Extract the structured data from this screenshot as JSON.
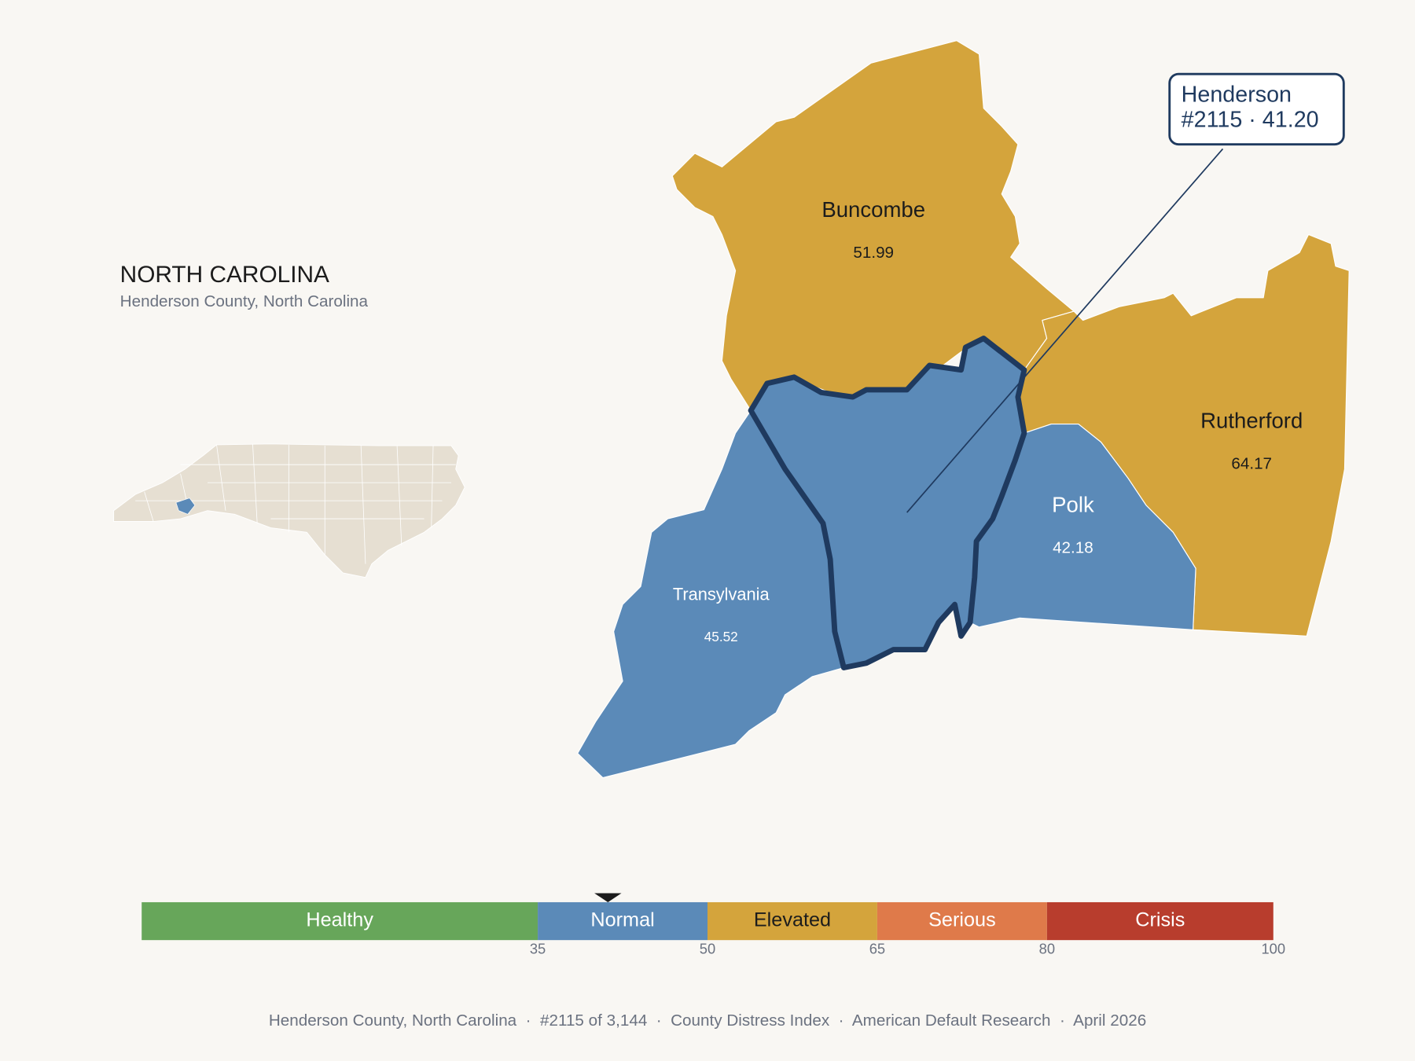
{
  "header": {
    "title": "NORTH CAROLINA",
    "subtitle": "Henderson County, North Carolina"
  },
  "map": {
    "counties": [
      {
        "name": "Buncombe",
        "value": 51.99
      },
      {
        "name": "Rutherford",
        "value": 64.17
      },
      {
        "name": "Polk",
        "value": 42.18
      },
      {
        "name": "Transylvania",
        "value": 45.52
      },
      {
        "name": "Henderson",
        "value": 41.2,
        "value_label": "41.20"
      }
    ]
  },
  "callout": "#2115 · 41.20",
  "scale": {
    "xlim": [
      0,
      100
    ],
    "bands": [
      {
        "label": "Healthy",
        "to": 35,
        "color": "#67a65a"
      },
      {
        "label": "Normal",
        "to": 50,
        "color": "#5b8ab8"
      },
      {
        "label": "Elevated",
        "to": 65,
        "color": "#d4a43c"
      },
      {
        "label": "Serious",
        "to": 80,
        "color": "#df7a4a"
      },
      {
        "label": "Crisis",
        "to": 100,
        "color": "#b83d2d"
      }
    ]
  },
  "footer": "Henderson County, North Carolina  ·  #2115 of 3,144  ·  County Distress Index  ·  American Default Research  ·  April 2026"
}
